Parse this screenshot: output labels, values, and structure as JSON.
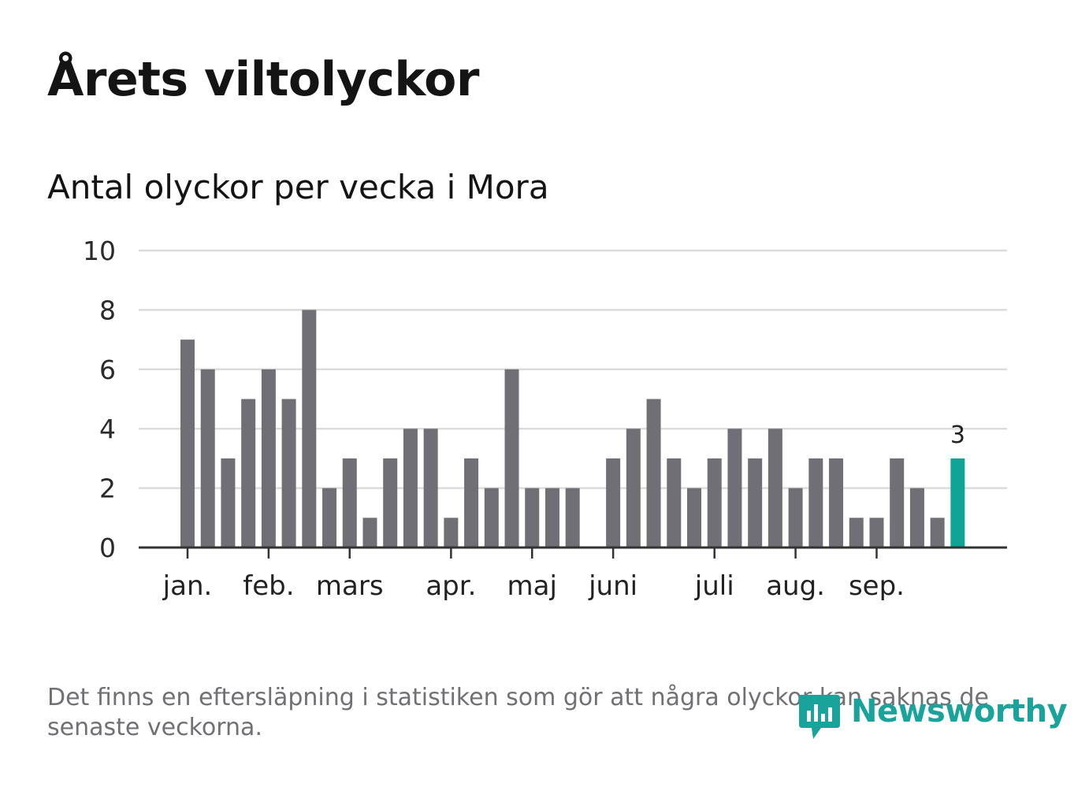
{
  "title": "Årets viltolyckor",
  "subtitle": "Antal olyckor per vecka i Mora",
  "footnote": "Det finns en eftersläpning i statistiken som gör att några olyckor kan saknas de senaste veckorna.",
  "brand": {
    "name": "Newsworthy",
    "color": "#1aa39a"
  },
  "colors": {
    "bar": "#706f76",
    "highlight": "#0ea597",
    "grid": "#dcdcdc",
    "axis": "#333333"
  },
  "chart_data": {
    "type": "bar",
    "title": "Årets viltolyckor",
    "subtitle": "Antal olyckor per vecka i Mora",
    "xlabel": "",
    "ylabel": "",
    "ylim": [
      0,
      10
    ],
    "yticks": [
      0,
      2,
      4,
      6,
      8,
      10
    ],
    "grid": true,
    "weeks": [
      1,
      2,
      3,
      4,
      5,
      6,
      7,
      8,
      9,
      10,
      11,
      12,
      13,
      14,
      15,
      16,
      17,
      18,
      19,
      20,
      21,
      22,
      23,
      24,
      25,
      26,
      27,
      28,
      29,
      30,
      31,
      32,
      33,
      34,
      35,
      36,
      37,
      38,
      39
    ],
    "values": [
      7,
      6,
      3,
      5,
      6,
      5,
      8,
      2,
      3,
      1,
      3,
      4,
      4,
      1,
      3,
      2,
      6,
      2,
      2,
      2,
      0,
      3,
      4,
      5,
      3,
      2,
      3,
      4,
      3,
      4,
      2,
      3,
      3,
      1,
      1,
      3,
      2,
      1,
      3
    ],
    "highlight_index": 38,
    "highlight_label": "3",
    "month_ticks": [
      {
        "label": "jan.",
        "week": 1
      },
      {
        "label": "feb.",
        "week": 5
      },
      {
        "label": "mars",
        "week": 9
      },
      {
        "label": "apr.",
        "week": 14
      },
      {
        "label": "maj",
        "week": 18
      },
      {
        "label": "juni",
        "week": 22
      },
      {
        "label": "juli",
        "week": 27
      },
      {
        "label": "aug.",
        "week": 31
      },
      {
        "label": "sep.",
        "week": 35
      }
    ]
  }
}
